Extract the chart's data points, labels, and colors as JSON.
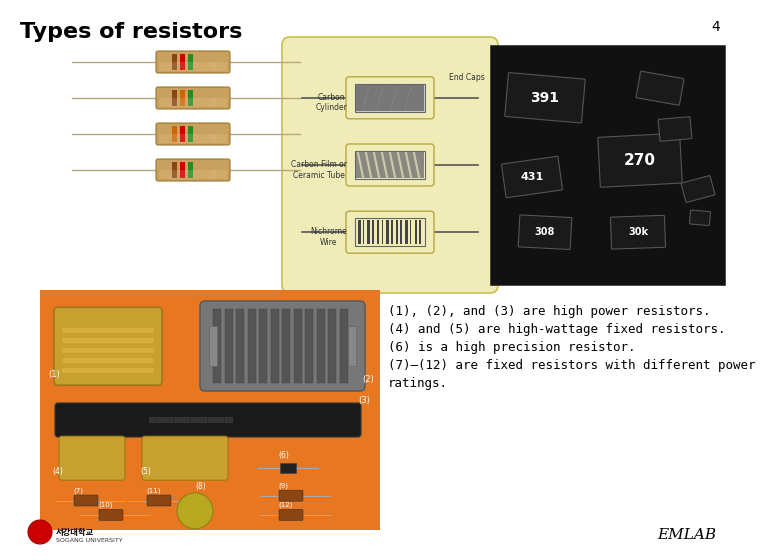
{
  "title": "Types of resistors",
  "slide_number": "4",
  "background_color": "#ffffff",
  "title_fontsize": 16,
  "title_font_weight": "bold",
  "description_lines": [
    "(1), (2), and (3) are high power resistors.",
    "(4) and (5) are high-wattage fixed resistors.",
    "(6) is a high precision resistor.",
    "(7)–(12) are fixed resistors with different power",
    "ratings."
  ],
  "desc_fontsize": 9,
  "emlab_text": "EMLAB",
  "emlab_fontsize": 11,
  "slide_num_fontsize": 10,
  "orange_color": "#E87722",
  "resistor_body_color": "#c8a060",
  "resistor_lead_color": "#b8a878",
  "band_sets": [
    [
      "#8B4513",
      "#cc0000",
      "#228B22",
      "#c8a060"
    ],
    [
      "#8B4513",
      "#cc6600",
      "#228B22",
      "#c8a060"
    ],
    [
      "#cc6600",
      "#cc0000",
      "#228B22",
      "#c8a060"
    ],
    [
      "#8B4513",
      "#cc0000",
      "#228B22",
      "#c8a060"
    ]
  ]
}
